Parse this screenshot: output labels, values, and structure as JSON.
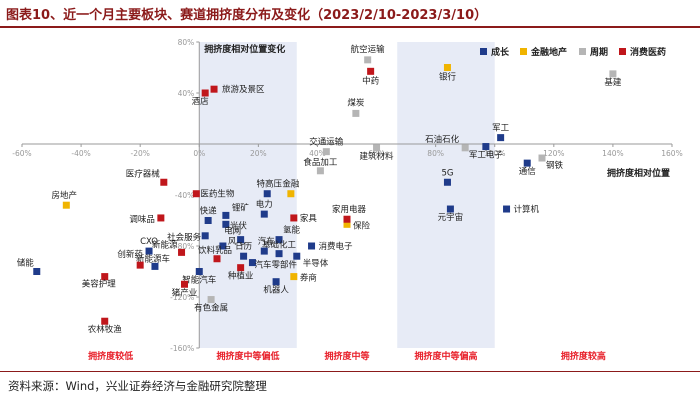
{
  "title": "图表10、近一个月主要板块、赛道拥挤度分布及变化（2023/2/10-2023/3/10）",
  "source": "资料来源：Wind，兴业证券经济与金融研究院整理",
  "colors": {
    "成长": "#1f3b8a",
    "金融地产": "#f0b400",
    "周期": "#b5b5b5",
    "消费医药": "#c0161b",
    "axis": "#9a9a9a",
    "band": "#e7ebf6",
    "zone_label": "#e8202a",
    "title": "#8b1a1a"
  },
  "chart_data": {
    "type": "scatter",
    "xlabel": "拥挤度相对位置",
    "ylabel": "拥挤度相对位置变化",
    "xlim": [
      -60,
      160
    ],
    "ylim": [
      -160,
      80
    ],
    "x_ticks": [
      "-60%",
      "-40%",
      "-20%",
      "0%",
      "20%",
      "40%",
      "60%",
      "80%",
      "100%",
      "120%",
      "140%",
      "160%"
    ],
    "y_ticks": [
      "80%",
      "40%",
      "0%",
      "-40%",
      "-80%",
      "-120%",
      "-160%"
    ],
    "grid": false,
    "legend_position": "top-right",
    "zones": [
      {
        "label": "拥挤度较低",
        "x_range": [
          -60,
          0
        ],
        "shaded": false
      },
      {
        "label": "拥挤度中等偏低",
        "x_range": [
          0,
          33
        ],
        "shaded": true
      },
      {
        "label": "拥挤度中等",
        "x_range": [
          33,
          67
        ],
        "shaded": false
      },
      {
        "label": "拥挤度中等偏高",
        "x_range": [
          67,
          100
        ],
        "shaded": true
      },
      {
        "label": "拥挤度较高",
        "x_range": [
          100,
          160
        ],
        "shaded": false
      }
    ],
    "series": [
      {
        "name": "成长",
        "marker": "square",
        "points": [
          {
            "label": "5G",
            "x": 84,
            "y": -30
          },
          {
            "label": "元宇宙",
            "x": 85,
            "y": -51
          },
          {
            "label": "军工",
            "x": 102,
            "y": 5
          },
          {
            "label": "军工电子",
            "x": 97,
            "y": -2
          },
          {
            "label": "通信",
            "x": 111,
            "y": -15
          },
          {
            "label": "计算机",
            "x": 104,
            "y": -51
          },
          {
            "label": "储能",
            "x": -55,
            "y": -100
          },
          {
            "label": "CXO",
            "x": -17,
            "y": -84
          },
          {
            "label": "新能源车",
            "x": -15,
            "y": -96
          },
          {
            "label": "智能汽车",
            "x": 0,
            "y": -100
          },
          {
            "label": "快递",
            "x": 3,
            "y": -60
          },
          {
            "label": "锂矿",
            "x": 9,
            "y": -56
          },
          {
            "label": "光伏",
            "x": 9,
            "y": -63
          },
          {
            "label": "社会服务",
            "x": 2,
            "y": -72
          },
          {
            "label": "风电",
            "x": 8,
            "y": -80
          },
          {
            "label": "电网",
            "x": 14,
            "y": -75
          },
          {
            "label": "电力",
            "x": 22,
            "y": -55
          },
          {
            "label": "特高压",
            "x": 23,
            "y": -39
          },
          {
            "label": "氢能",
            "x": 27,
            "y": -75
          },
          {
            "label": "基础化工",
            "x": 27,
            "y": -86
          },
          {
            "label": "汽车零部件",
            "x": 18,
            "y": -93
          },
          {
            "label": "汽车",
            "x": 22,
            "y": -84
          },
          {
            "label": "日历",
            "x": 15,
            "y": -88
          },
          {
            "label": "机器人",
            "x": 26,
            "y": -108
          },
          {
            "label": "半导体",
            "x": 33,
            "y": -88
          },
          {
            "label": "消费电子",
            "x": 38,
            "y": -80
          }
        ]
      },
      {
        "name": "金融地产",
        "marker": "square",
        "points": [
          {
            "label": "银行",
            "x": 84,
            "y": 60
          },
          {
            "label": "房地产",
            "x": -45,
            "y": -48
          },
          {
            "label": "金融",
            "x": 31,
            "y": -39
          },
          {
            "label": "保险",
            "x": 50,
            "y": -63
          },
          {
            "label": "券商",
            "x": 32,
            "y": -104
          }
        ]
      },
      {
        "name": "周期",
        "marker": "square",
        "points": [
          {
            "label": "航空运输",
            "x": 57,
            "y": 66
          },
          {
            "label": "煤炭",
            "x": 53,
            "y": 24
          },
          {
            "label": "建筑材料",
            "x": 60,
            "y": -3
          },
          {
            "label": "基建",
            "x": 140,
            "y": 55
          },
          {
            "label": "石油石化",
            "x": 90,
            "y": -3
          },
          {
            "label": "钢铁",
            "x": 116,
            "y": -11
          },
          {
            "label": "交通运输",
            "x": 43,
            "y": -6
          },
          {
            "label": "食品加工",
            "x": 41,
            "y": -21
          },
          {
            "label": "有色金属",
            "x": 4,
            "y": -122
          }
        ]
      },
      {
        "name": "消费医药",
        "marker": "square",
        "points": [
          {
            "label": "旅游及景区",
            "x": 5,
            "y": 43
          },
          {
            "label": "酒店",
            "x": 2,
            "y": 40
          },
          {
            "label": "中药",
            "x": 58,
            "y": 57
          },
          {
            "label": "医疗器械",
            "x": -12,
            "y": -30
          },
          {
            "label": "医药生物",
            "x": -1,
            "y": -39
          },
          {
            "label": "调味品",
            "x": -13,
            "y": -58
          },
          {
            "label": "家具",
            "x": 32,
            "y": -58
          },
          {
            "label": "家用电器",
            "x": 50,
            "y": -59
          },
          {
            "label": "美容护理",
            "x": -32,
            "y": -104
          },
          {
            "label": "创新药",
            "x": -20,
            "y": -95
          },
          {
            "label": "新能源",
            "x": -6,
            "y": -85
          },
          {
            "label": "饮料乳品",
            "x": 6,
            "y": -90
          },
          {
            "label": "种植业",
            "x": 14,
            "y": -97
          },
          {
            "label": "猪产业",
            "x": -5,
            "y": -110
          },
          {
            "label": "农林牧渔",
            "x": -32,
            "y": -139
          }
        ]
      }
    ]
  }
}
